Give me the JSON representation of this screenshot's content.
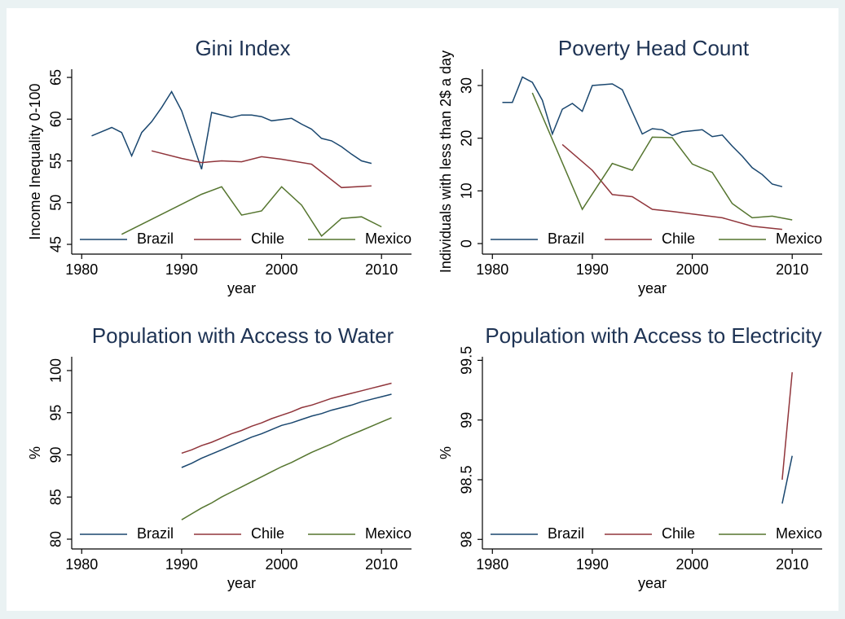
{
  "chart_data": [
    {
      "type": "line",
      "title": "Gini Index",
      "ylabel": "Income Inequality 0-100",
      "xlabel": "year",
      "xlim": [
        1979,
        2013
      ],
      "xticks": [
        1980,
        1990,
        2000,
        2010
      ],
      "ylim": [
        43.83,
        65.98
      ],
      "yticks": [
        45,
        50,
        55,
        60,
        65
      ],
      "legend": "bottom",
      "series": [
        {
          "name": "Brazil",
          "color": "#1a476f",
          "x": [
            1981,
            1982,
            1983,
            1984,
            1985,
            1986,
            1987,
            1988,
            1989,
            1990,
            1992,
            1993,
            1995,
            1996,
            1997,
            1998,
            1999,
            2001,
            2002,
            2003,
            2004,
            2005,
            2006,
            2007,
            2008,
            2009
          ],
          "values": [
            58.0,
            58.5,
            59.0,
            58.4,
            55.6,
            58.4,
            59.7,
            61.4,
            63.3,
            61.0,
            54.0,
            60.8,
            60.2,
            60.5,
            60.5,
            60.3,
            59.8,
            60.1,
            59.4,
            58.8,
            57.7,
            57.4,
            56.7,
            55.8,
            55.0,
            54.7
          ]
        },
        {
          "name": "Chile",
          "color": "#90353b",
          "x": [
            1987,
            1990,
            1992,
            1994,
            1996,
            1998,
            2000,
            2003,
            2006,
            2009
          ],
          "values": [
            56.2,
            55.3,
            54.8,
            55.0,
            54.9,
            55.5,
            55.2,
            54.6,
            51.8,
            52.0
          ]
        },
        {
          "name": "Mexico",
          "color": "#55752f",
          "x": [
            1984,
            1992,
            1994,
            1996,
            1998,
            2000,
            2002,
            2004,
            2006,
            2008,
            2010
          ],
          "values": [
            46.2,
            51.0,
            51.9,
            48.5,
            49.0,
            51.9,
            49.7,
            46.0,
            48.1,
            48.3,
            47.1
          ]
        }
      ]
    },
    {
      "type": "line",
      "title": "Poverty Head Count",
      "ylabel": "Individuals with less than 2$ a day",
      "xlabel": "year",
      "xlim": [
        1979,
        2013
      ],
      "xticks": [
        1980,
        1990,
        2000,
        2010
      ],
      "ylim": [
        -2.0,
        33.09
      ],
      "yticks": [
        0,
        10,
        20,
        30
      ],
      "legend": "bottom",
      "series": [
        {
          "name": "Brazil",
          "color": "#1a476f",
          "x": [
            1981,
            1982,
            1983,
            1984,
            1985,
            1986,
            1987,
            1988,
            1989,
            1990,
            1992,
            1993,
            1995,
            1996,
            1997,
            1998,
            1999,
            2001,
            2002,
            2003,
            2004,
            2005,
            2006,
            2007,
            2008,
            2009
          ],
          "values": [
            26.8,
            26.8,
            31.6,
            30.6,
            27.2,
            20.8,
            25.5,
            26.6,
            25.1,
            30.0,
            30.3,
            29.2,
            20.8,
            21.8,
            21.6,
            20.5,
            21.2,
            21.6,
            20.3,
            20.6,
            18.5,
            16.6,
            14.4,
            13.1,
            11.3,
            10.8
          ]
        },
        {
          "name": "Chile",
          "color": "#90353b",
          "x": [
            1987,
            1990,
            1992,
            1994,
            1996,
            1998,
            2000,
            2003,
            2006,
            2009
          ],
          "values": [
            18.8,
            13.9,
            9.3,
            8.9,
            6.5,
            6.1,
            5.6,
            4.9,
            3.3,
            2.7
          ]
        },
        {
          "name": "Mexico",
          "color": "#55752f",
          "x": [
            1984,
            1989,
            1992,
            1994,
            1996,
            1998,
            2000,
            2002,
            2004,
            2006,
            2008,
            2010
          ],
          "values": [
            28.6,
            6.5,
            15.2,
            13.9,
            20.2,
            20.1,
            15.1,
            13.5,
            7.6,
            4.9,
            5.2,
            4.5
          ]
        }
      ]
    },
    {
      "type": "line",
      "title": "Population with Access to Water",
      "ylabel": "%",
      "xlabel": "year",
      "xlim": [
        1979,
        2013
      ],
      "xticks": [
        1980,
        1990,
        2000,
        2010
      ],
      "ylim": [
        78.84,
        101.64
      ],
      "yticks": [
        80,
        85,
        90,
        95,
        100
      ],
      "legend": "bottom",
      "series": [
        {
          "name": "Brazil",
          "color": "#1a476f",
          "x": [
            1990,
            1991,
            1992,
            1993,
            1994,
            1995,
            1996,
            1997,
            1998,
            1999,
            2000,
            2001,
            2002,
            2003,
            2004,
            2005,
            2006,
            2007,
            2008,
            2009,
            2010,
            2011
          ],
          "values": [
            88.5,
            89.0,
            89.6,
            90.1,
            90.6,
            91.1,
            91.6,
            92.1,
            92.5,
            93.0,
            93.5,
            93.8,
            94.2,
            94.6,
            94.9,
            95.3,
            95.6,
            95.9,
            96.3,
            96.6,
            96.9,
            97.2
          ]
        },
        {
          "name": "Chile",
          "color": "#90353b",
          "x": [
            1990,
            1991,
            1992,
            1993,
            1994,
            1995,
            1996,
            1997,
            1998,
            1999,
            2000,
            2001,
            2002,
            2003,
            2004,
            2005,
            2006,
            2007,
            2008,
            2009,
            2010,
            2011
          ],
          "values": [
            90.2,
            90.6,
            91.1,
            91.5,
            92.0,
            92.5,
            92.9,
            93.4,
            93.8,
            94.3,
            94.7,
            95.1,
            95.6,
            95.9,
            96.3,
            96.7,
            97.0,
            97.3,
            97.6,
            97.9,
            98.2,
            98.5
          ]
        },
        {
          "name": "Mexico",
          "color": "#55752f",
          "x": [
            1990,
            1991,
            1992,
            1993,
            1994,
            1995,
            1996,
            1997,
            1998,
            1999,
            2000,
            2001,
            2002,
            2003,
            2004,
            2005,
            2006,
            2007,
            2008,
            2009,
            2010,
            2011
          ],
          "values": [
            82.3,
            83.0,
            83.7,
            84.3,
            85.0,
            85.6,
            86.2,
            86.8,
            87.4,
            88.0,
            88.6,
            89.1,
            89.7,
            90.3,
            90.8,
            91.3,
            91.9,
            92.4,
            92.9,
            93.4,
            93.9,
            94.4
          ]
        }
      ]
    },
    {
      "type": "line",
      "title": "Population with Access to Electricity",
      "ylabel": "%",
      "xlabel": "year",
      "xlim": [
        1979,
        2013
      ],
      "xticks": [
        1980,
        1990,
        2000,
        2010
      ],
      "ylim": [
        97.92,
        99.53
      ],
      "yticks": [
        98,
        98.5,
        99,
        99.5
      ],
      "legend": "bottom",
      "series": [
        {
          "name": "Brazil",
          "color": "#1a476f",
          "x": [
            2009,
            2010
          ],
          "values": [
            98.3,
            98.7
          ]
        },
        {
          "name": "Chile",
          "color": "#90353b",
          "x": [
            2009,
            2010
          ],
          "values": [
            98.5,
            99.4
          ]
        },
        {
          "name": "Mexico",
          "color": "#55752f",
          "x": [],
          "values": []
        }
      ]
    }
  ]
}
